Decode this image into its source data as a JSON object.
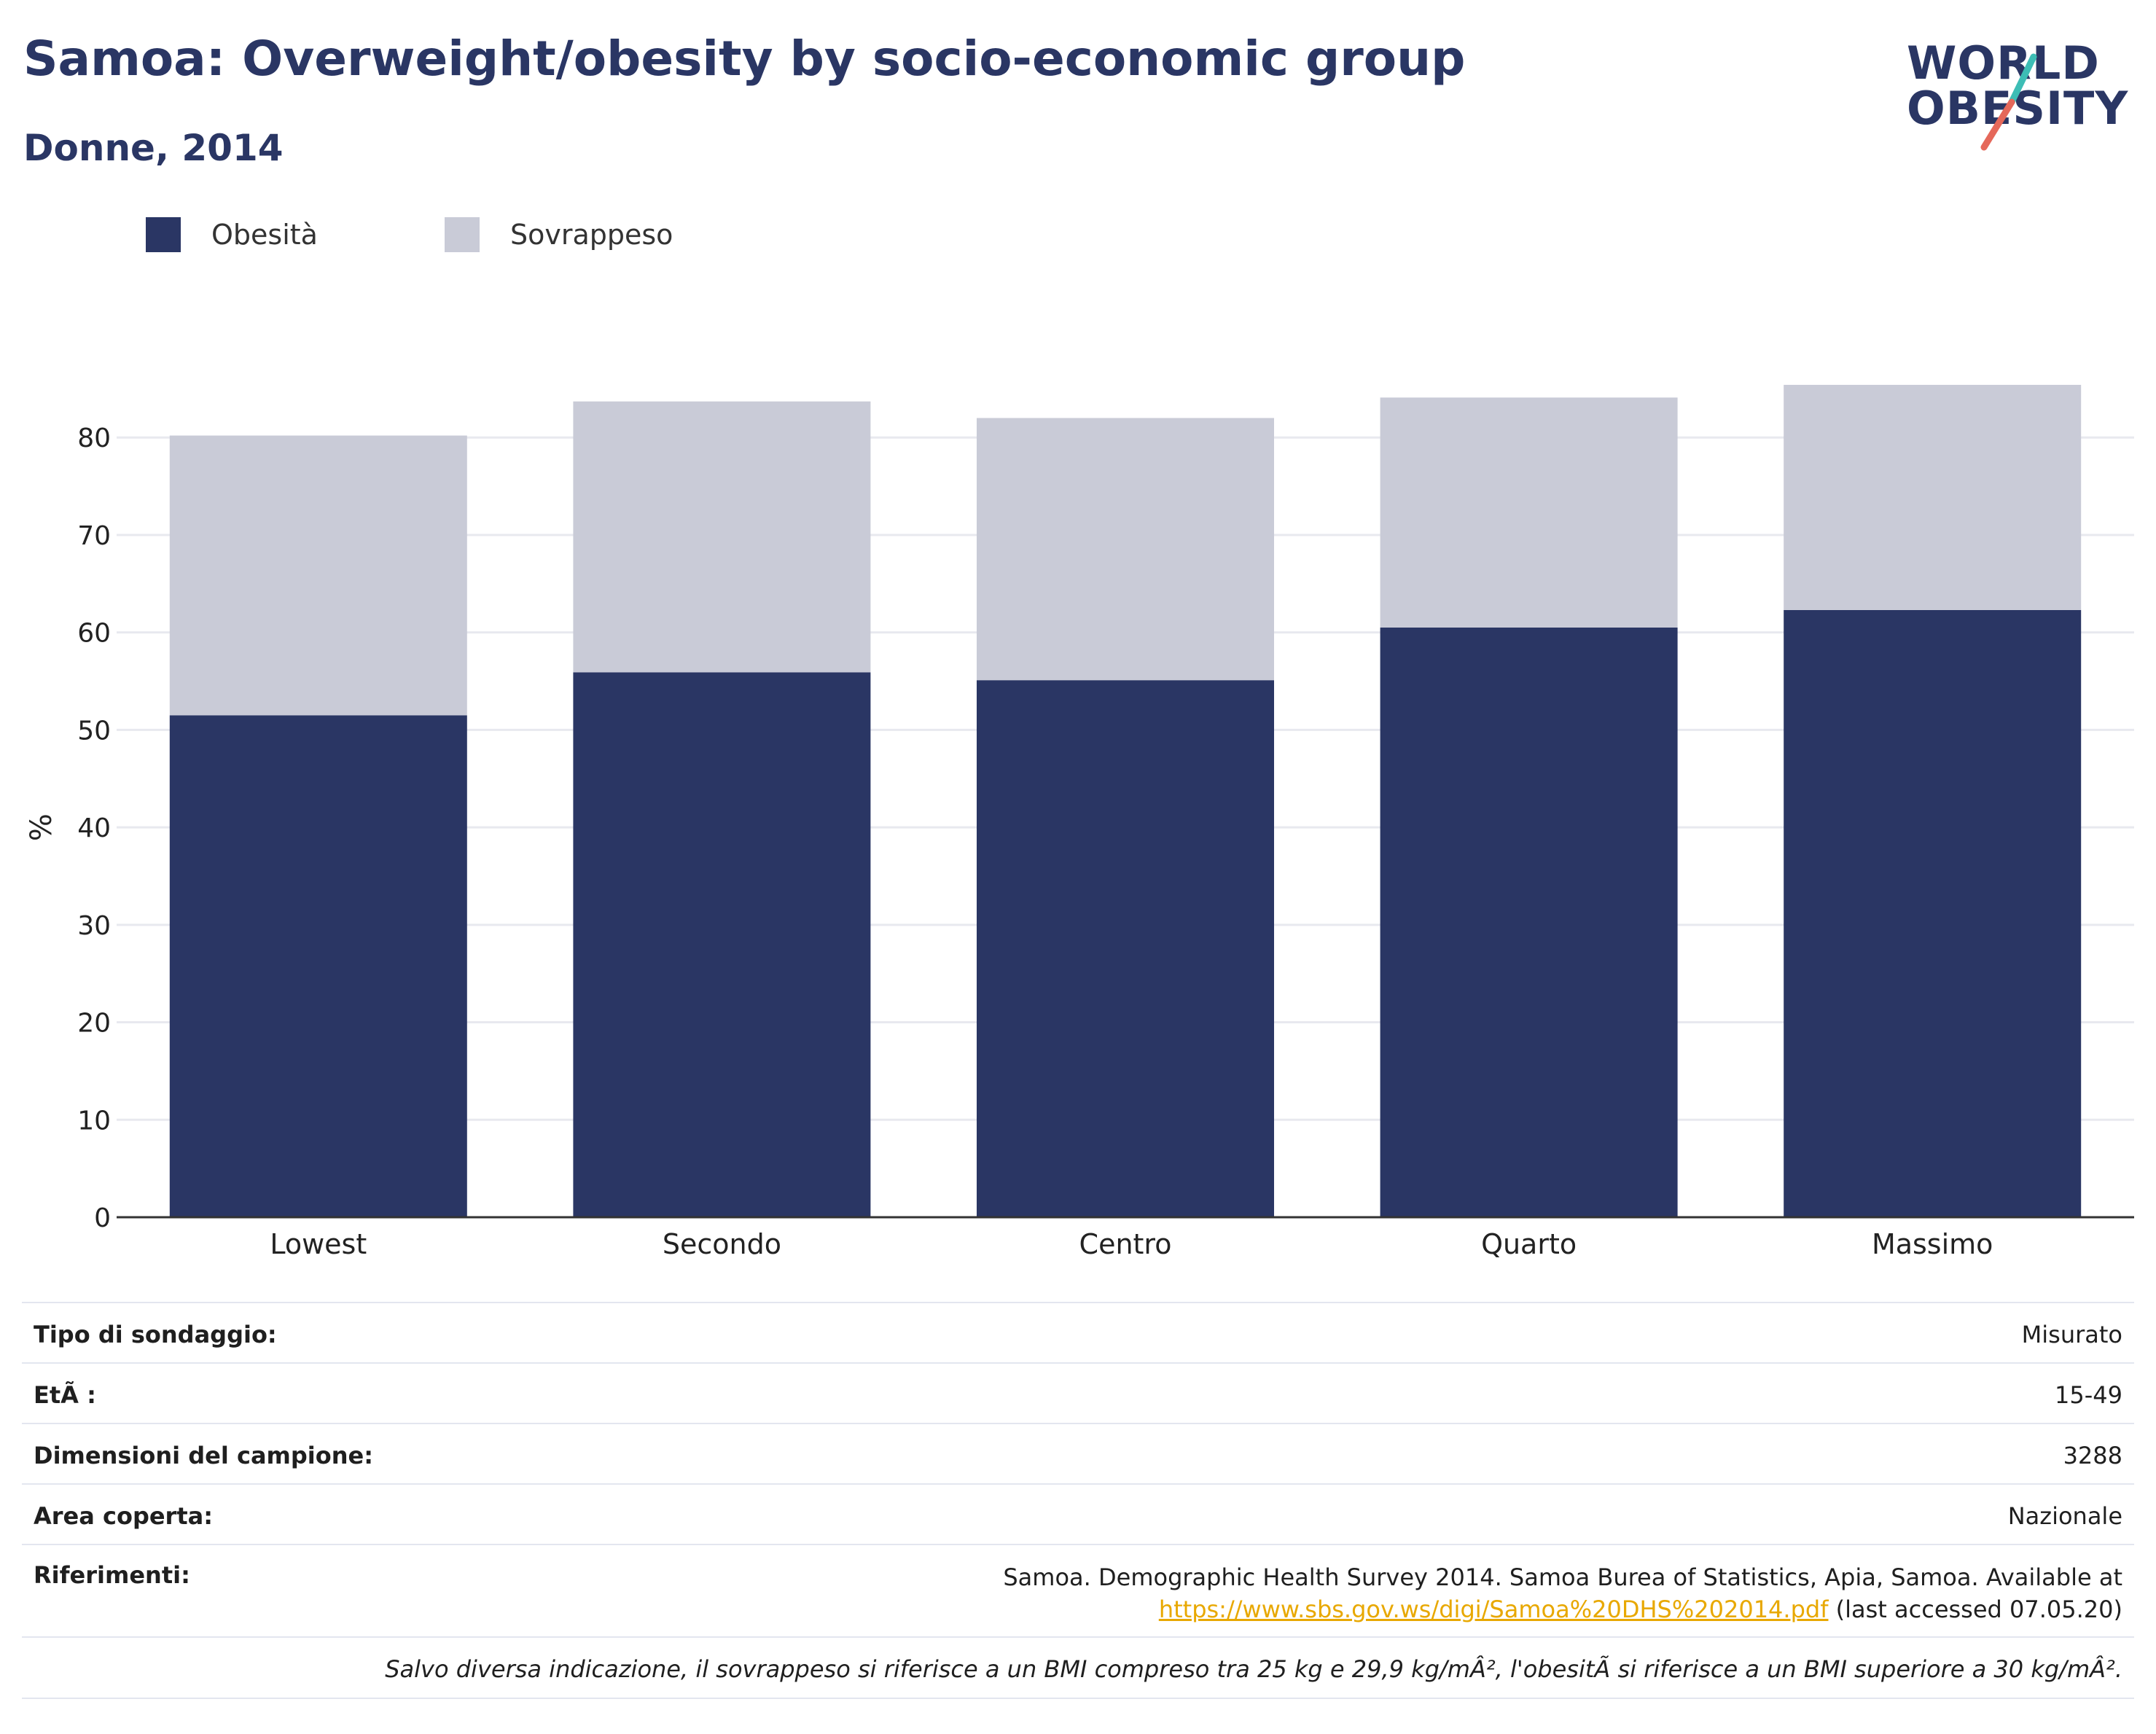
{
  "header": {
    "title": "Samoa: Overweight/obesity by socio-economic group",
    "subtitle": "Donne, 2014"
  },
  "logo": {
    "line1": "WORLD",
    "line2": "OBESITY",
    "colors": {
      "text": "#2a3664",
      "slash_top": "#3dbdb5",
      "slash_bottom": "#e5685a"
    }
  },
  "legend": [
    {
      "label": "Obesità",
      "color": "#2a3664"
    },
    {
      "label": "Sovrappeso",
      "color": "#c9cbd7"
    }
  ],
  "chart_data": {
    "type": "bar",
    "stacked": true,
    "categories": [
      "Lowest",
      "Secondo",
      "Centro",
      "Quarto",
      "Massimo"
    ],
    "series": [
      {
        "name": "Obesità",
        "values": [
          51.5,
          55.9,
          55.1,
          60.5,
          62.3
        ],
        "color": "#2a3664"
      },
      {
        "name": "Sovrappeso",
        "values": [
          28.7,
          27.8,
          26.9,
          23.6,
          23.1
        ],
        "color": "#c9cbd7"
      }
    ],
    "ylabel": "%",
    "ylim": [
      0,
      86
    ],
    "yticks": [
      0,
      10,
      20,
      30,
      40,
      50,
      60,
      70,
      80
    ],
    "grid": true,
    "legend_position": "top-left"
  },
  "info": {
    "rows": [
      {
        "key": "Tipo di sondaggio:",
        "value": "Misurato"
      },
      {
        "key": "EtÃ :",
        "value": "15-49"
      },
      {
        "key": "Dimensioni del campione:",
        "value": "3288"
      },
      {
        "key": "Area coperta:",
        "value": "Nazionale"
      }
    ],
    "references": {
      "key": "Riferimenti:",
      "line1": "Samoa. Demographic Health Survey 2014. Samoa Burea of Statistics, Apia, Samoa. Available at",
      "link": "https://www.sbs.gov.ws/digi/Samoa%20DHS%202014.pdf",
      "after_link": " (last accessed 07.05.20)"
    },
    "note": "Salvo diversa indicazione, il sovrappeso si riferisce a un BMI compreso tra 25 kg e 29,9 kg/mÂ², l'obesitÃ  si riferisce a un BMI superiore a 30 kg/mÂ²."
  }
}
